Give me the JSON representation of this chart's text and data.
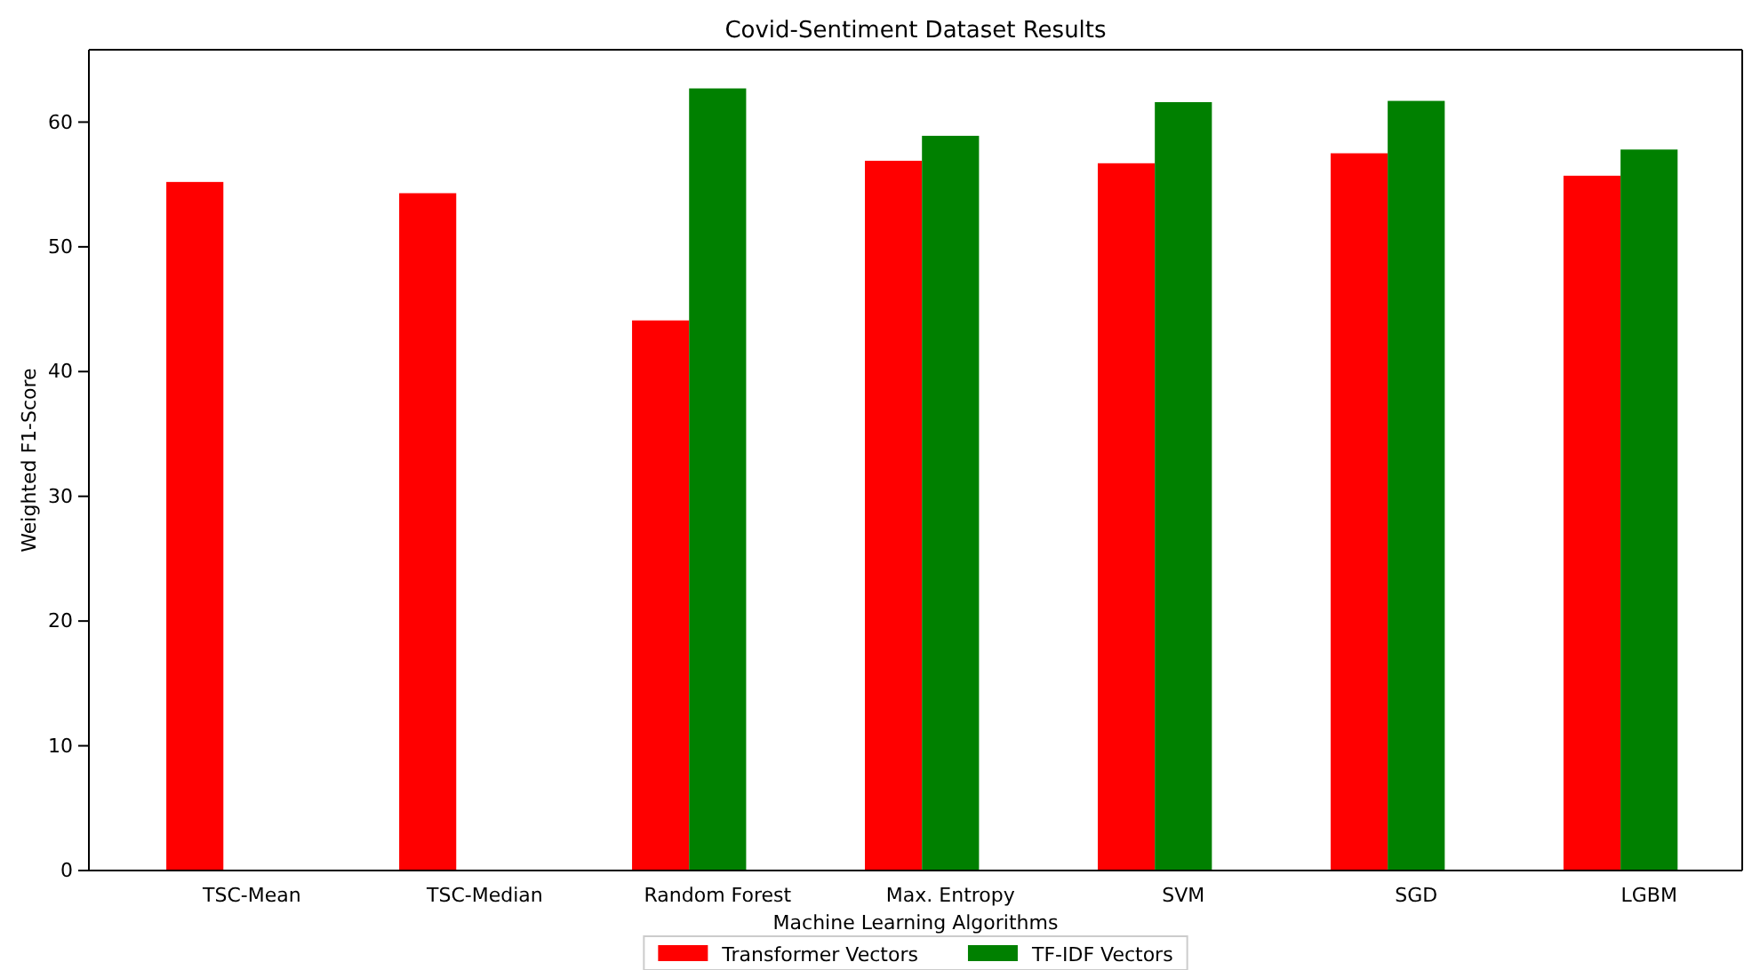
{
  "chart_data": {
    "type": "bar",
    "title": "Covid-Sentiment Dataset Results",
    "xlabel": "Machine Learning Algorithms",
    "ylabel": "Weighted F1-Score",
    "categories": [
      "TSC-Mean",
      "TSC-Median",
      "Random Forest",
      "Max. Entropy",
      "SVM",
      "SGD",
      "LGBM"
    ],
    "series": [
      {
        "name": "Transformer Vectors",
        "color": "#ff0000",
        "values": [
          55.2,
          54.3,
          44.1,
          56.9,
          56.7,
          57.5,
          55.7
        ]
      },
      {
        "name": "TF-IDF Vectors",
        "color": "#008000",
        "values": [
          null,
          null,
          62.7,
          58.9,
          61.6,
          61.7,
          57.8
        ]
      }
    ],
    "ylim": [
      0,
      65.8
    ],
    "yticks": [
      0,
      10,
      20,
      30,
      40,
      50,
      60
    ],
    "grid": false,
    "legend": "bottom"
  }
}
